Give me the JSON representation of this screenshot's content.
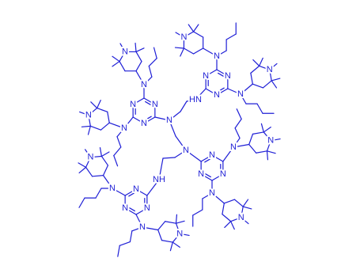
{
  "atoms": [
    "N",
    "N",
    "N",
    "N",
    "N",
    "N",
    "N",
    "N",
    "N",
    "N",
    "N",
    "N",
    "N",
    "N",
    "N",
    "N",
    "N",
    "N",
    "N",
    "N",
    "N",
    "N",
    "N",
    "N",
    "N",
    "N",
    "N",
    "N",
    "N",
    "N",
    "HN",
    "NH"
  ]
}
